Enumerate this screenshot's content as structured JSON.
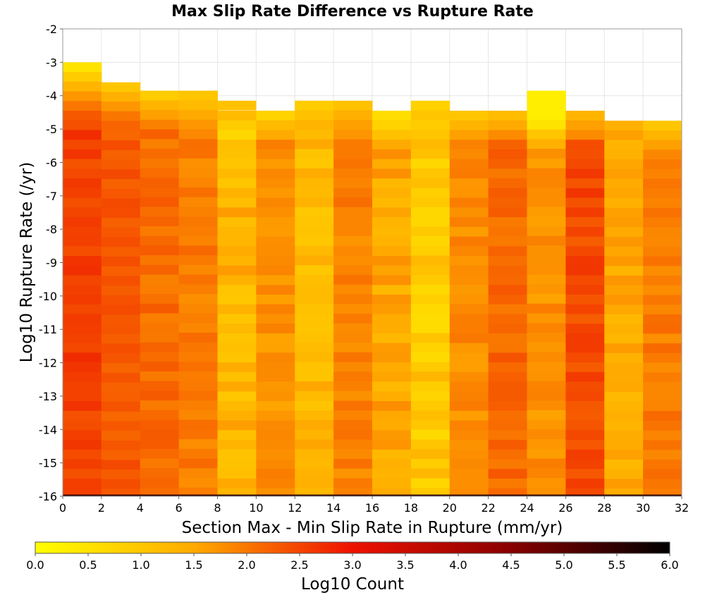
{
  "chart_data": {
    "type": "heatmap",
    "title": "Max Slip Rate Difference vs Rupture Rate",
    "xlabel": "Section Max - Min Slip Rate in Rupture (mm/yr)",
    "ylabel": "Log10 Rupture Rate (/yr)",
    "xlim": [
      0,
      32
    ],
    "ylim": [
      -16,
      -2
    ],
    "x_bin_width": 2,
    "y_bin_height": 0.29,
    "grid": true,
    "x_ticks": [
      "0",
      "2",
      "4",
      "6",
      "8",
      "10",
      "12",
      "14",
      "16",
      "18",
      "20",
      "22",
      "24",
      "26",
      "28",
      "30",
      "32"
    ],
    "y_ticks": [
      "-2",
      "-3",
      "-4",
      "-5",
      "-6",
      "-7",
      "-8",
      "-9",
      "-10",
      "-11",
      "-12",
      "-13",
      "-14",
      "-15",
      "-16"
    ],
    "columns": [
      {
        "x_start": 0,
        "y_top": -3.0,
        "top_values": [
          0.5,
          0.9,
          1.3,
          1.7,
          2.0,
          2.3
        ],
        "base": 2.55,
        "variation": 0.2
      },
      {
        "x_start": 2,
        "y_top": -3.6,
        "top_values": [
          1.0,
          1.4,
          1.7,
          2.0
        ],
        "base": 2.3,
        "variation": 0.15
      },
      {
        "x_start": 4,
        "y_top": -3.85,
        "top_values": [
          0.9,
          1.3,
          1.6,
          1.9
        ],
        "base": 2.1,
        "variation": 0.2
      },
      {
        "x_start": 6,
        "y_top": -3.85,
        "top_values": [
          1.0,
          1.2,
          1.5,
          1.7
        ],
        "base": 1.95,
        "variation": 0.2
      },
      {
        "x_start": 8,
        "y_top": -4.45,
        "top_values": [
          1.2,
          0.9,
          0.7
        ],
        "base": 1.3,
        "variation": 0.35
      },
      {
        "x_start": 10,
        "y_top": -4.45,
        "top_values": [
          0.8,
          1.2,
          1.5
        ],
        "base": 1.75,
        "variation": 0.2
      },
      {
        "x_start": 12,
        "y_top": -4.15,
        "top_values": [
          0.9,
          1.1,
          1.3
        ],
        "base": 1.25,
        "variation": 0.3
      },
      {
        "x_start": 14,
        "y_top": -4.15,
        "top_values": [
          1.1,
          1.4,
          1.6
        ],
        "base": 1.9,
        "variation": 0.2
      },
      {
        "x_start": 16,
        "y_top": -4.45,
        "top_values": [
          0.6,
          0.8,
          1.1
        ],
        "base": 1.5,
        "variation": 0.3
      },
      {
        "x_start": 18,
        "y_top": -4.15,
        "top_values": [
          0.8,
          1.0,
          0.9
        ],
        "base": 0.95,
        "variation": 0.35
      },
      {
        "x_start": 20,
        "y_top": -4.45,
        "top_values": [
          1.0,
          1.3,
          1.6
        ],
        "base": 1.8,
        "variation": 0.2
      },
      {
        "x_start": 22,
        "y_top": -4.45,
        "top_values": [
          1.2,
          1.5,
          1.8
        ],
        "base": 2.15,
        "variation": 0.2
      },
      {
        "x_start": 24,
        "y_top": -3.85,
        "top_values": [
          0.3,
          0.3,
          0.3,
          0.5,
          1.0,
          1.4
        ],
        "base": 1.75,
        "variation": 0.2
      },
      {
        "x_start": 26,
        "y_top": -4.45,
        "top_values": [
          1.3,
          1.6,
          1.8
        ],
        "base": 2.45,
        "variation": 0.2
      },
      {
        "x_start": 28,
        "y_top": -4.75,
        "top_values": [
          1.4,
          1.6
        ],
        "base": 1.45,
        "variation": 0.25
      },
      {
        "x_start": 30,
        "y_top": -4.75,
        "top_values": [
          1.0,
          1.3,
          1.6
        ],
        "base": 1.95,
        "variation": 0.2
      }
    ],
    "partial_cells": [
      {
        "x_start": 8,
        "x_end": 10,
        "y": -4.15,
        "value": 1.1
      }
    ],
    "bottom_row": {
      "y": -15.95,
      "value": 5.5
    },
    "colorbar": {
      "label": "Log10 Count",
      "range": [
        0,
        6
      ],
      "ticks": [
        "0.0",
        "0.5",
        "1.0",
        "1.5",
        "2.0",
        "2.5",
        "3.0",
        "3.5",
        "4.0",
        "4.5",
        "5.0",
        "5.5",
        "6.0"
      ],
      "stops": [
        {
          "value": 0.0,
          "color": "#ffff00"
        },
        {
          "value": 1.5,
          "color": "#ffaa00"
        },
        {
          "value": 3.0,
          "color": "#ee1100"
        },
        {
          "value": 4.5,
          "color": "#880000"
        },
        {
          "value": 6.0,
          "color": "#000000"
        }
      ]
    },
    "colors": {
      "grid": "#e6e6e6",
      "frame": "#999999",
      "background": "#ffffff"
    }
  }
}
